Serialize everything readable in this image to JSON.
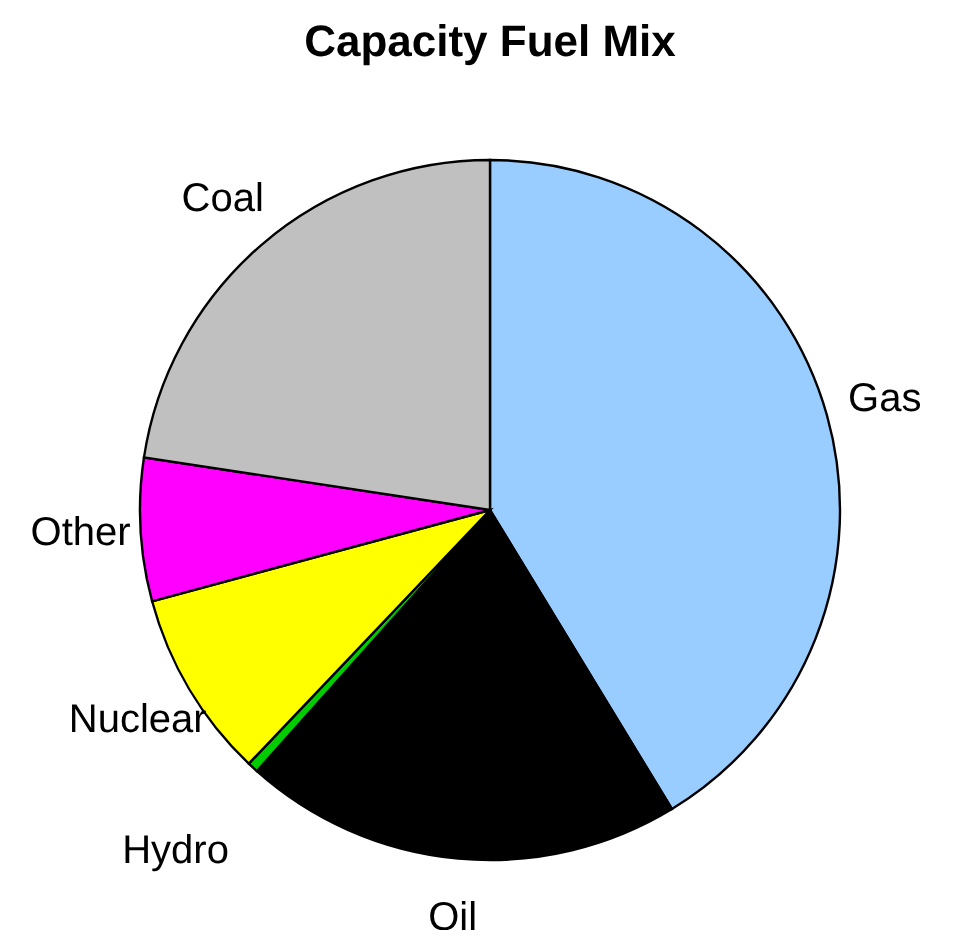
{
  "chart_data": {
    "type": "pie",
    "title": "Capacity Fuel Mix",
    "categories": [
      "Gas",
      "Oil",
      "Hydro",
      "Nuclear",
      "Other",
      "Coal"
    ],
    "values": [
      41.3,
      20.3,
      0.5,
      8.7,
      6.6,
      22.6
    ],
    "colors": [
      "#99ccff",
      "#000000",
      "#00cc00",
      "#ffff00",
      "#ff00ff",
      "#c0c0c0"
    ],
    "legend": false
  }
}
